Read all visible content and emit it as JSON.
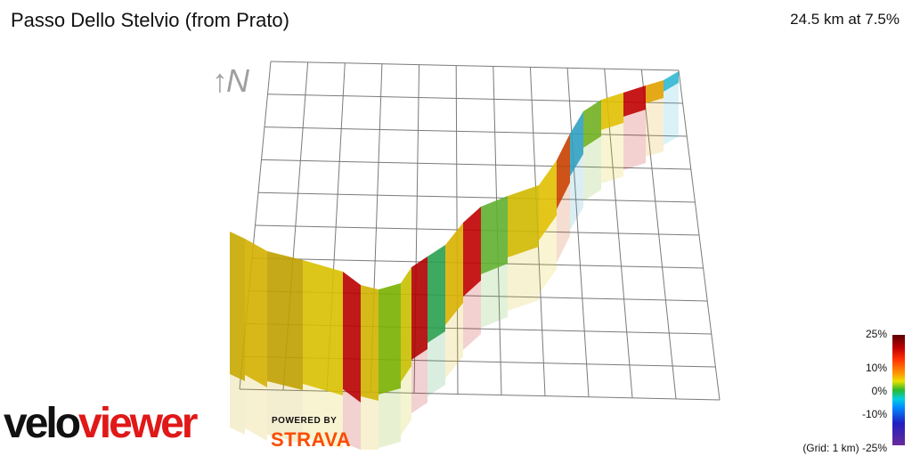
{
  "title": "Passo Dello Stelvio (from Prato)",
  "stats": "24.5 km at 7.5%",
  "north_label": "↑N",
  "brand": {
    "part1": "velo",
    "part2": "viewer",
    "powered": "POWERED BY",
    "strava": "STRAVA"
  },
  "scale": {
    "labels": [
      "25%",
      "10%",
      "0%",
      "-10%"
    ],
    "grid_note": "(Grid: 1 km) -25%"
  },
  "colors": {
    "brand_red": "#e01818",
    "strava_orange": "#fc4c02",
    "grid": "#7a7a7a"
  }
}
